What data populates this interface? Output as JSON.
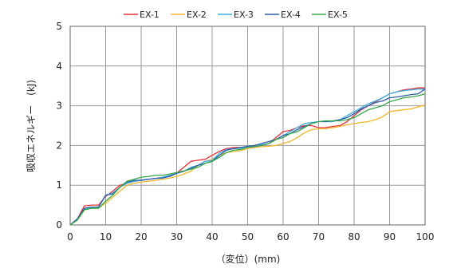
{
  "chart_data": {
    "type": "line",
    "xlabel": "（変位）(mm)",
    "ylabel": "吸収エネルギー　(kJ)",
    "xlim": [
      0,
      100
    ],
    "ylim": [
      0,
      5
    ],
    "x_ticks": [
      "0",
      "10",
      "20",
      "30",
      "40",
      "50",
      "60",
      "70",
      "80",
      "90",
      "100"
    ],
    "y_ticks": [
      "0",
      "1",
      "2",
      "3",
      "4",
      "5"
    ],
    "grid": true,
    "legend_position": "top",
    "series": [
      {
        "name": "EX-1",
        "color": "#e8303a",
        "points": [
          [
            0,
            0
          ],
          [
            2,
            0.15
          ],
          [
            4,
            0.48
          ],
          [
            6,
            0.5
          ],
          [
            8,
            0.5
          ],
          [
            10,
            0.72
          ],
          [
            12,
            0.85
          ],
          [
            14,
            1.0
          ],
          [
            16,
            1.05
          ],
          [
            18,
            1.1
          ],
          [
            20,
            1.12
          ],
          [
            22,
            1.15
          ],
          [
            24,
            1.17
          ],
          [
            26,
            1.2
          ],
          [
            28,
            1.22
          ],
          [
            30,
            1.3
          ],
          [
            32,
            1.45
          ],
          [
            34,
            1.6
          ],
          [
            36,
            1.63
          ],
          [
            38,
            1.65
          ],
          [
            40,
            1.75
          ],
          [
            42,
            1.85
          ],
          [
            44,
            1.92
          ],
          [
            46,
            1.95
          ],
          [
            48,
            1.95
          ],
          [
            50,
            1.97
          ],
          [
            52,
            1.98
          ],
          [
            54,
            2.0
          ],
          [
            56,
            2.05
          ],
          [
            58,
            2.2
          ],
          [
            60,
            2.35
          ],
          [
            62,
            2.38
          ],
          [
            64,
            2.45
          ],
          [
            66,
            2.5
          ],
          [
            68,
            2.5
          ],
          [
            70,
            2.45
          ],
          [
            72,
            2.45
          ],
          [
            74,
            2.48
          ],
          [
            76,
            2.5
          ],
          [
            78,
            2.6
          ],
          [
            80,
            2.75
          ],
          [
            82,
            2.9
          ],
          [
            84,
            3.0
          ],
          [
            86,
            3.1
          ],
          [
            88,
            3.2
          ],
          [
            90,
            3.3
          ],
          [
            92,
            3.35
          ],
          [
            94,
            3.4
          ],
          [
            96,
            3.42
          ],
          [
            98,
            3.45
          ],
          [
            100,
            3.45
          ]
        ]
      },
      {
        "name": "EX-2",
        "color": "#f0b62a",
        "points": [
          [
            0,
            0
          ],
          [
            2,
            0.12
          ],
          [
            4,
            0.38
          ],
          [
            6,
            0.42
          ],
          [
            8,
            0.42
          ],
          [
            10,
            0.55
          ],
          [
            12,
            0.7
          ],
          [
            14,
            0.85
          ],
          [
            16,
            1.0
          ],
          [
            18,
            1.05
          ],
          [
            20,
            1.08
          ],
          [
            22,
            1.1
          ],
          [
            24,
            1.12
          ],
          [
            26,
            1.15
          ],
          [
            28,
            1.18
          ],
          [
            30,
            1.22
          ],
          [
            32,
            1.28
          ],
          [
            34,
            1.35
          ],
          [
            36,
            1.5
          ],
          [
            38,
            1.6
          ],
          [
            40,
            1.65
          ],
          [
            42,
            1.75
          ],
          [
            44,
            1.82
          ],
          [
            46,
            1.85
          ],
          [
            48,
            1.87
          ],
          [
            50,
            1.92
          ],
          [
            52,
            1.95
          ],
          [
            54,
            1.97
          ],
          [
            56,
            1.98
          ],
          [
            58,
            2.0
          ],
          [
            60,
            2.05
          ],
          [
            62,
            2.1
          ],
          [
            64,
            2.2
          ],
          [
            66,
            2.32
          ],
          [
            68,
            2.4
          ],
          [
            70,
            2.42
          ],
          [
            72,
            2.42
          ],
          [
            74,
            2.45
          ],
          [
            76,
            2.48
          ],
          [
            78,
            2.52
          ],
          [
            80,
            2.55
          ],
          [
            82,
            2.58
          ],
          [
            84,
            2.6
          ],
          [
            86,
            2.65
          ],
          [
            88,
            2.72
          ],
          [
            90,
            2.85
          ],
          [
            92,
            2.88
          ],
          [
            94,
            2.9
          ],
          [
            96,
            2.92
          ],
          [
            98,
            2.97
          ],
          [
            100,
            3.02
          ]
        ]
      },
      {
        "name": "EX-3",
        "color": "#3bb0e0",
        "points": [
          [
            0,
            0
          ],
          [
            2,
            0.15
          ],
          [
            4,
            0.4
          ],
          [
            6,
            0.45
          ],
          [
            8,
            0.45
          ],
          [
            10,
            0.75
          ],
          [
            12,
            0.8
          ],
          [
            14,
            0.95
          ],
          [
            16,
            1.05
          ],
          [
            18,
            1.1
          ],
          [
            20,
            1.12
          ],
          [
            22,
            1.15
          ],
          [
            24,
            1.17
          ],
          [
            26,
            1.2
          ],
          [
            28,
            1.25
          ],
          [
            30,
            1.3
          ],
          [
            32,
            1.35
          ],
          [
            34,
            1.45
          ],
          [
            36,
            1.5
          ],
          [
            38,
            1.6
          ],
          [
            40,
            1.62
          ],
          [
            42,
            1.8
          ],
          [
            44,
            1.9
          ],
          [
            46,
            1.92
          ],
          [
            48,
            1.93
          ],
          [
            50,
            1.97
          ],
          [
            52,
            2.0
          ],
          [
            54,
            2.02
          ],
          [
            56,
            2.05
          ],
          [
            58,
            2.15
          ],
          [
            60,
            2.25
          ],
          [
            62,
            2.35
          ],
          [
            64,
            2.45
          ],
          [
            66,
            2.55
          ],
          [
            68,
            2.58
          ],
          [
            70,
            2.6
          ],
          [
            72,
            2.6
          ],
          [
            74,
            2.6
          ],
          [
            76,
            2.65
          ],
          [
            78,
            2.75
          ],
          [
            80,
            2.85
          ],
          [
            82,
            2.95
          ],
          [
            84,
            3.05
          ],
          [
            86,
            3.12
          ],
          [
            88,
            3.2
          ],
          [
            90,
            3.3
          ],
          [
            92,
            3.35
          ],
          [
            94,
            3.38
          ],
          [
            96,
            3.4
          ],
          [
            98,
            3.42
          ],
          [
            100,
            3.42
          ]
        ]
      },
      {
        "name": "EX-4",
        "color": "#2f5ea8",
        "points": [
          [
            0,
            0
          ],
          [
            2,
            0.15
          ],
          [
            4,
            0.42
          ],
          [
            6,
            0.45
          ],
          [
            8,
            0.45
          ],
          [
            10,
            0.75
          ],
          [
            12,
            0.78
          ],
          [
            14,
            0.95
          ],
          [
            16,
            1.08
          ],
          [
            18,
            1.12
          ],
          [
            20,
            1.13
          ],
          [
            22,
            1.15
          ],
          [
            24,
            1.17
          ],
          [
            26,
            1.18
          ],
          [
            28,
            1.22
          ],
          [
            30,
            1.3
          ],
          [
            32,
            1.35
          ],
          [
            34,
            1.42
          ],
          [
            36,
            1.5
          ],
          [
            38,
            1.55
          ],
          [
            40,
            1.6
          ],
          [
            42,
            1.75
          ],
          [
            44,
            1.88
          ],
          [
            46,
            1.92
          ],
          [
            48,
            1.95
          ],
          [
            50,
            1.98
          ],
          [
            52,
            2.0
          ],
          [
            54,
            2.05
          ],
          [
            56,
            2.1
          ],
          [
            58,
            2.15
          ],
          [
            60,
            2.25
          ],
          [
            62,
            2.3
          ],
          [
            64,
            2.4
          ],
          [
            66,
            2.48
          ],
          [
            68,
            2.55
          ],
          [
            70,
            2.6
          ],
          [
            72,
            2.6
          ],
          [
            74,
            2.62
          ],
          [
            76,
            2.65
          ],
          [
            78,
            2.7
          ],
          [
            80,
            2.8
          ],
          [
            82,
            2.92
          ],
          [
            84,
            3.0
          ],
          [
            86,
            3.08
          ],
          [
            88,
            3.12
          ],
          [
            90,
            3.2
          ],
          [
            92,
            3.22
          ],
          [
            94,
            3.25
          ],
          [
            96,
            3.28
          ],
          [
            98,
            3.3
          ],
          [
            100,
            3.42
          ]
        ]
      },
      {
        "name": "EX-5",
        "color": "#36a84a",
        "points": [
          [
            0,
            0
          ],
          [
            2,
            0.12
          ],
          [
            4,
            0.38
          ],
          [
            6,
            0.42
          ],
          [
            8,
            0.42
          ],
          [
            10,
            0.6
          ],
          [
            12,
            0.75
          ],
          [
            14,
            0.95
          ],
          [
            16,
            1.1
          ],
          [
            18,
            1.15
          ],
          [
            20,
            1.2
          ],
          [
            22,
            1.22
          ],
          [
            24,
            1.25
          ],
          [
            26,
            1.25
          ],
          [
            28,
            1.28
          ],
          [
            30,
            1.32
          ],
          [
            32,
            1.36
          ],
          [
            34,
            1.4
          ],
          [
            36,
            1.45
          ],
          [
            38,
            1.55
          ],
          [
            40,
            1.6
          ],
          [
            42,
            1.7
          ],
          [
            44,
            1.82
          ],
          [
            46,
            1.88
          ],
          [
            48,
            1.9
          ],
          [
            50,
            1.95
          ],
          [
            52,
            1.97
          ],
          [
            54,
            2.0
          ],
          [
            56,
            2.05
          ],
          [
            58,
            2.15
          ],
          [
            60,
            2.2
          ],
          [
            62,
            2.3
          ],
          [
            64,
            2.35
          ],
          [
            66,
            2.45
          ],
          [
            68,
            2.55
          ],
          [
            70,
            2.6
          ],
          [
            72,
            2.62
          ],
          [
            74,
            2.62
          ],
          [
            76,
            2.62
          ],
          [
            78,
            2.65
          ],
          [
            80,
            2.7
          ],
          [
            82,
            2.8
          ],
          [
            84,
            2.9
          ],
          [
            86,
            2.95
          ],
          [
            88,
            3.0
          ],
          [
            90,
            3.1
          ],
          [
            92,
            3.15
          ],
          [
            94,
            3.2
          ],
          [
            96,
            3.22
          ],
          [
            98,
            3.25
          ],
          [
            100,
            3.3
          ]
        ]
      }
    ]
  }
}
